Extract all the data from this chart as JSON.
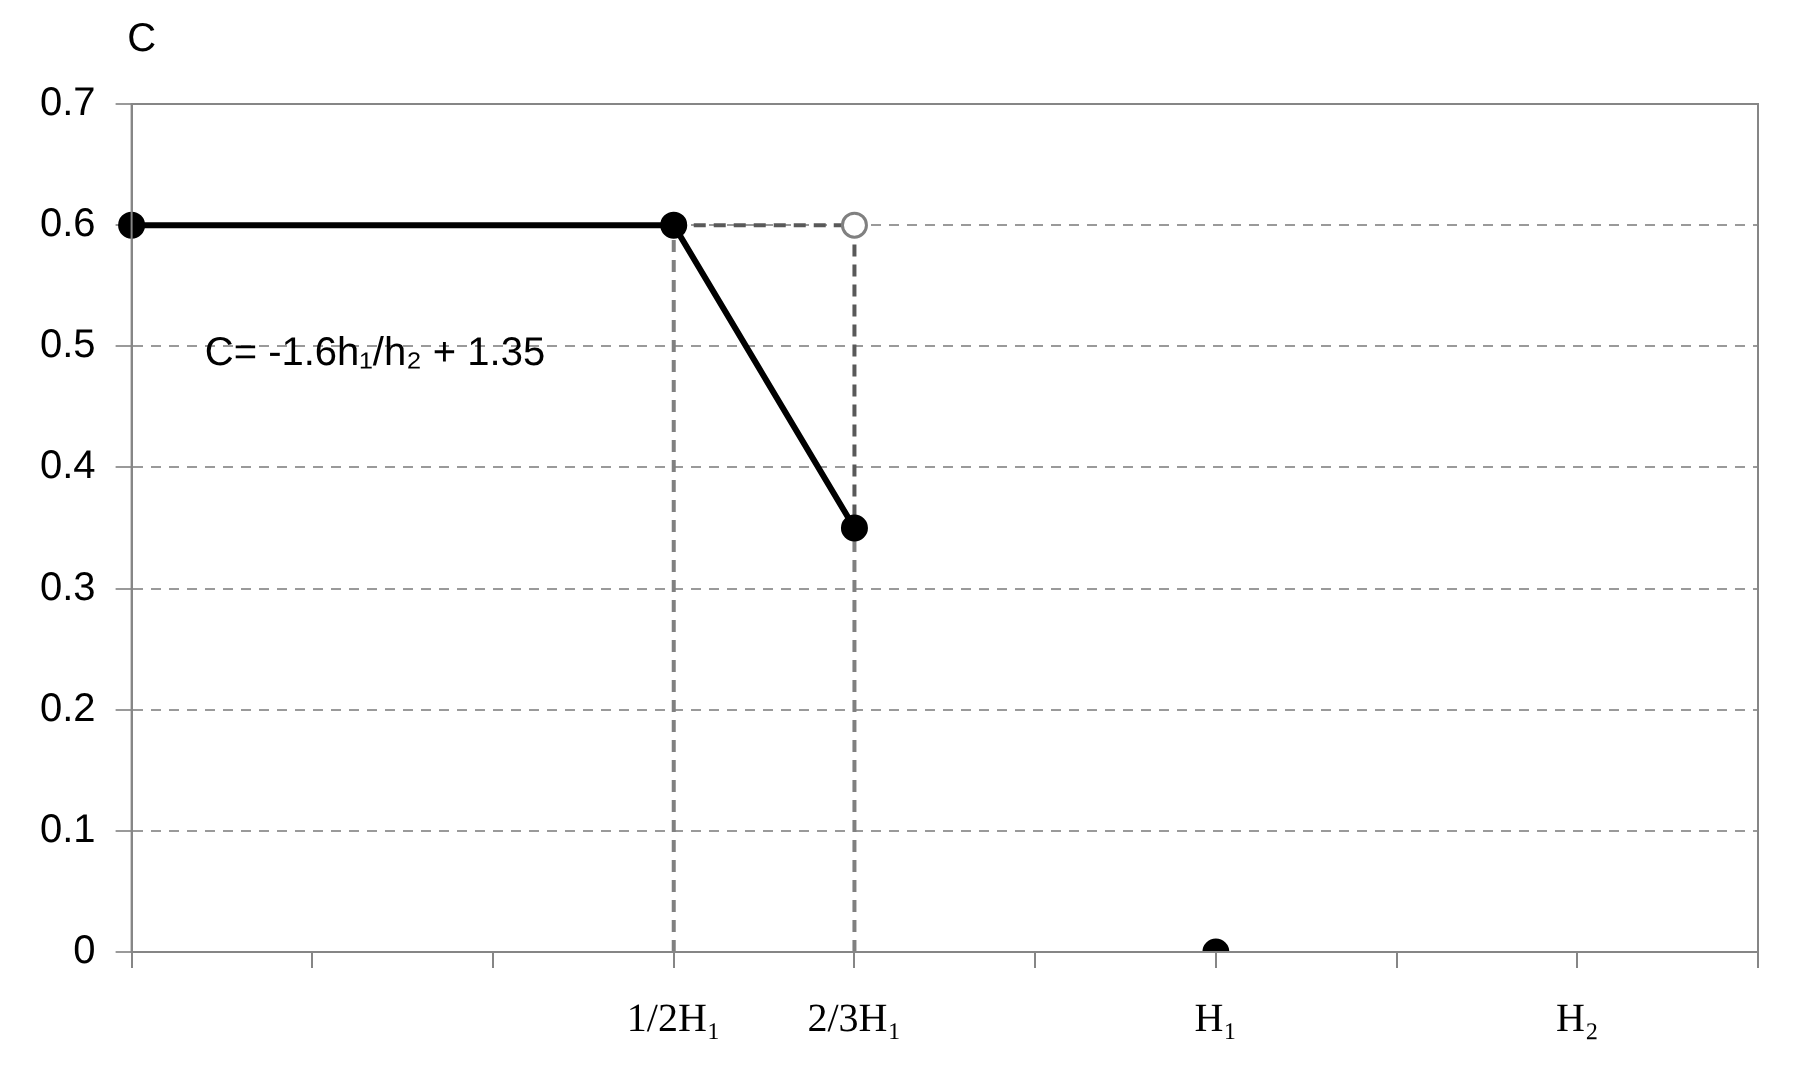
{
  "chart_data": {
    "type": "line",
    "ylabel": "C",
    "categories": [
      null,
      null,
      null,
      "1/2H₁",
      "2/3H₁",
      null,
      "H₁",
      null,
      "H₂",
      null
    ],
    "ylim": [
      0,
      0.7
    ],
    "yticks": [
      0,
      0.1,
      0.2,
      0.3,
      0.4,
      0.5,
      0.6,
      0.7
    ],
    "grid": "y",
    "legend": false,
    "annotations": [
      "C= -1.6h₁/h₂ + 1.35"
    ],
    "series": [
      {
        "color": "#808080",
        "line_style": "dashed",
        "marker": "none",
        "x": [
          "1/2H₁",
          "1/2H₁"
        ],
        "values": [
          0,
          0.6
        ]
      },
      {
        "color": "#808080",
        "line_style": "dashed",
        "marker": "none",
        "x": [
          "2/3H₁",
          "2/3H₁"
        ],
        "values": [
          0,
          0.35
        ]
      },
      {
        "color": "#595959",
        "line_style": "dashed",
        "marker": "none",
        "x": [
          "1/2H₁",
          "2/3H₁",
          "2/3H₁"
        ],
        "values": [
          0.6,
          0.6,
          0.35
        ]
      },
      {
        "color": "#000000",
        "line_style": "solid",
        "marker": "none",
        "values": [
          0.6,
          0.6,
          0.6,
          0.6,
          0.35,
          null,
          null,
          null,
          null,
          null
        ]
      },
      {
        "type": "scatter",
        "color": "#000000",
        "marker": "circle",
        "values": [
          0.6,
          null,
          null,
          0.6,
          0.35,
          null,
          0,
          null,
          null,
          null
        ]
      },
      {
        "type": "scatter",
        "color": "#808080",
        "colors": [
          "#ffffff"
        ],
        "marker": "circle",
        "x": [
          "2/3H₁"
        ],
        "values": [
          0.6
        ]
      }
    ]
  }
}
